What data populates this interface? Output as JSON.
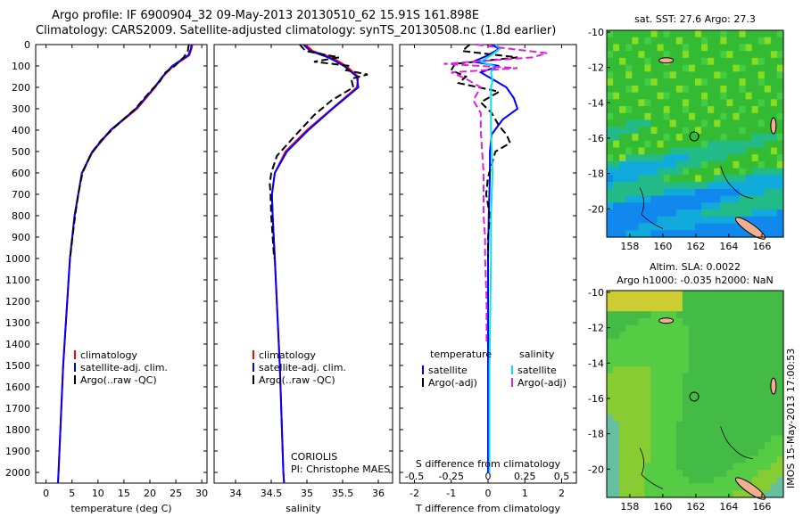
{
  "header": {
    "line1": "Argo profile: IF 6900904_32 09-May-2013 20130510_62 15.91S 161.898E",
    "line2": "Climatology: CARS2009. Satellite-adjusted climatology: synTS_20130508.nc (1.8d earlier)"
  },
  "side_stamp": "IMOS 15-May-2013 17:00:53",
  "colors": {
    "climatology": "#ff0000",
    "satellite": "#0000ff",
    "argo": "#000000",
    "salinity_sat": "#00e5ee",
    "salinity_argo": "#e020e0"
  },
  "chart_data": [
    {
      "type": "line",
      "panel": "temperature",
      "xlabel": "temperature (deg C)",
      "xlim": [
        -2,
        31
      ],
      "xticks": [
        0,
        5,
        10,
        15,
        20,
        25,
        30
      ],
      "ylim": [
        0,
        2050
      ],
      "yticks": [
        0,
        100,
        200,
        300,
        400,
        500,
        600,
        700,
        800,
        900,
        1000,
        1100,
        1200,
        1300,
        1400,
        1500,
        1600,
        1700,
        1800,
        1900,
        2000
      ],
      "legend": [
        "climatology",
        "satellite-adj. clim.",
        "Argo(..raw -QC)"
      ],
      "series": [
        {
          "name": "climatology",
          "depth": [
            0,
            20,
            50,
            100,
            150,
            200,
            300,
            400,
            500,
            600,
            800,
            1000,
            1500,
            2000,
            2050
          ],
          "values": [
            28.2,
            28.0,
            27.6,
            24.5,
            22.5,
            21.0,
            17.5,
            12.5,
            9.0,
            6.9,
            5.5,
            4.6,
            3.3,
            2.4,
            2.3
          ]
        },
        {
          "name": "satellite-adj. clim.",
          "depth": [
            0,
            20,
            50,
            100,
            150,
            200,
            300,
            400,
            500,
            600,
            800,
            1000,
            1500,
            2000,
            2050
          ],
          "values": [
            28.0,
            27.9,
            27.4,
            24.3,
            22.4,
            20.9,
            17.3,
            12.4,
            8.9,
            6.9,
            5.5,
            4.6,
            3.3,
            2.4,
            2.3
          ]
        },
        {
          "name": "Argo(..raw -QC)",
          "depth": [
            0,
            30,
            60,
            100,
            130,
            170,
            220,
            300,
            380,
            450,
            520,
            600,
            700,
            800,
            900,
            1000
          ],
          "values": [
            27.5,
            27.3,
            26.5,
            24.8,
            23.0,
            22.0,
            20.0,
            17.2,
            13.5,
            10.5,
            8.5,
            7.0,
            6.2,
            5.6,
            5.1,
            4.6
          ]
        }
      ]
    },
    {
      "type": "line",
      "panel": "salinity",
      "xlabel": "salinity",
      "xlim": [
        33.7,
        36.2
      ],
      "xticks": [
        34,
        34.5,
        35,
        35.5,
        36
      ],
      "ylim": [
        0,
        2050
      ],
      "legend": [
        "climatology",
        "satellite-adj. clim.",
        "Argo(..raw -QC)"
      ],
      "annotation": [
        "CORIOLIS",
        "PI: Christophe MAES"
      ],
      "series": [
        {
          "name": "climatology",
          "depth": [
            0,
            30,
            60,
            100,
            150,
            200,
            300,
            400,
            500,
            600,
            700,
            800,
            1000,
            1500,
            2000,
            2050
          ],
          "values": [
            34.98,
            35.08,
            35.35,
            35.55,
            35.72,
            35.7,
            35.35,
            35.0,
            34.7,
            34.55,
            34.51,
            34.52,
            34.55,
            34.62,
            34.67,
            34.68
          ]
        },
        {
          "name": "satellite-adj. clim.",
          "depth": [
            0,
            30,
            60,
            100,
            150,
            200,
            300,
            400,
            500,
            600,
            700,
            800,
            1000,
            1500,
            2000,
            2050
          ],
          "values": [
            34.95,
            35.05,
            35.3,
            35.52,
            35.7,
            35.72,
            35.36,
            35.02,
            34.72,
            34.55,
            34.51,
            34.52,
            34.55,
            34.62,
            34.67,
            34.68
          ]
        },
        {
          "name": "Argo(..raw -QC)",
          "depth": [
            0,
            30,
            60,
            80,
            100,
            120,
            140,
            160,
            200,
            260,
            330,
            420,
            520,
            600,
            650,
            700,
            800,
            900,
            1000
          ],
          "values": [
            34.9,
            34.98,
            35.45,
            35.1,
            35.6,
            35.55,
            35.85,
            35.62,
            35.65,
            35.35,
            35.1,
            34.85,
            34.58,
            34.5,
            34.48,
            34.49,
            34.5,
            34.52,
            34.54
          ]
        }
      ]
    },
    {
      "type": "line",
      "panel": "difference",
      "xlabel_bottom": "T difference from climatology",
      "xlabel_top": "S difference from climatology",
      "xlim": [
        -2.4,
        2.4
      ],
      "xticks_bottom": [
        -2,
        -1,
        0,
        1,
        2
      ],
      "xticks_top": [
        -0.5,
        -0.25,
        0,
        0.25,
        0.5
      ],
      "ylim": [
        0,
        2050
      ],
      "legend_temperature_header": "temperature",
      "legend_salinity_header": "salinity",
      "legend_temperature": [
        "satellite",
        "Argo(-adj)"
      ],
      "legend_salinity": [
        "satellite",
        "Argo(-adj)"
      ],
      "series": [
        {
          "name": "temperature satellite",
          "depth": [
            0,
            20,
            50,
            80,
            100,
            130,
            170,
            200,
            250,
            300,
            350,
            420,
            500,
            600,
            800,
            1000,
            1500,
            2000
          ],
          "values": [
            0.1,
            0.3,
            0.0,
            -0.4,
            0.3,
            -0.2,
            0.2,
            0.5,
            0.7,
            0.8,
            0.4,
            0.1,
            0.05,
            0.05,
            0.02,
            0.0,
            0.0,
            0.0
          ]
        },
        {
          "name": "temperature Argo(-adj)",
          "depth": [
            0,
            30,
            60,
            90,
            120,
            150,
            180,
            220,
            270,
            320,
            380,
            420,
            460,
            500,
            560,
            620,
            700,
            800,
            900,
            1000
          ],
          "values": [
            -0.5,
            -0.7,
            0.8,
            -0.9,
            -1.0,
            -0.6,
            -0.8,
            0.3,
            -0.2,
            0.1,
            0.3,
            0.5,
            0.6,
            0.2,
            0.1,
            0.0,
            -0.05,
            0.05,
            0.0,
            0.0
          ]
        },
        {
          "name": "salinity satellite",
          "depth": [
            0,
            20,
            50,
            80,
            100,
            130,
            170,
            200,
            300,
            400,
            600,
            800,
            1000,
            1500,
            2000
          ],
          "values": [
            0.05,
            0.08,
            0.02,
            -0.05,
            0.04,
            0.02,
            0.03,
            0.02,
            0.02,
            0.02,
            0.03,
            0.02,
            0.02,
            0.01,
            0.01
          ]
        },
        {
          "name": "salinity Argo(-adj)",
          "depth": [
            0,
            20,
            40,
            60,
            90,
            110,
            130,
            160,
            200,
            260,
            320,
            400,
            500,
            600,
            700,
            800,
            900,
            1000,
            1200,
            1400
          ],
          "values": [
            -0.08,
            0.15,
            0.4,
            0.3,
            -0.3,
            0.2,
            -0.25,
            -0.15,
            -0.05,
            -0.1,
            -0.05,
            -0.05,
            -0.04,
            -0.03,
            -0.03,
            -0.03,
            -0.02,
            -0.02,
            -0.01,
            -0.01
          ]
        }
      ]
    }
  ],
  "maps": [
    {
      "title": "sat. SST: 27.6 Argo: 27.3",
      "xticks": [
        158,
        160,
        162,
        164,
        166
      ],
      "yticks": [
        -10,
        -12,
        -14,
        -16,
        -18,
        -20
      ],
      "xlim": [
        156.6,
        167.3
      ],
      "ylim": [
        -21.6,
        -9.9
      ],
      "argo_marker": [
        161.9,
        -15.9
      ]
    },
    {
      "title1": "Altim. SLA: 0.0022",
      "title2": "Argo h1000: -0.035 h2000: NaN",
      "xticks": [
        158,
        160,
        162,
        164,
        166
      ],
      "yticks": [
        -10,
        -12,
        -14,
        -16,
        -18,
        -20
      ],
      "xlim": [
        156.6,
        167.3
      ],
      "ylim": [
        -21.6,
        -9.9
      ],
      "argo_marker": [
        161.9,
        -15.9
      ]
    }
  ]
}
